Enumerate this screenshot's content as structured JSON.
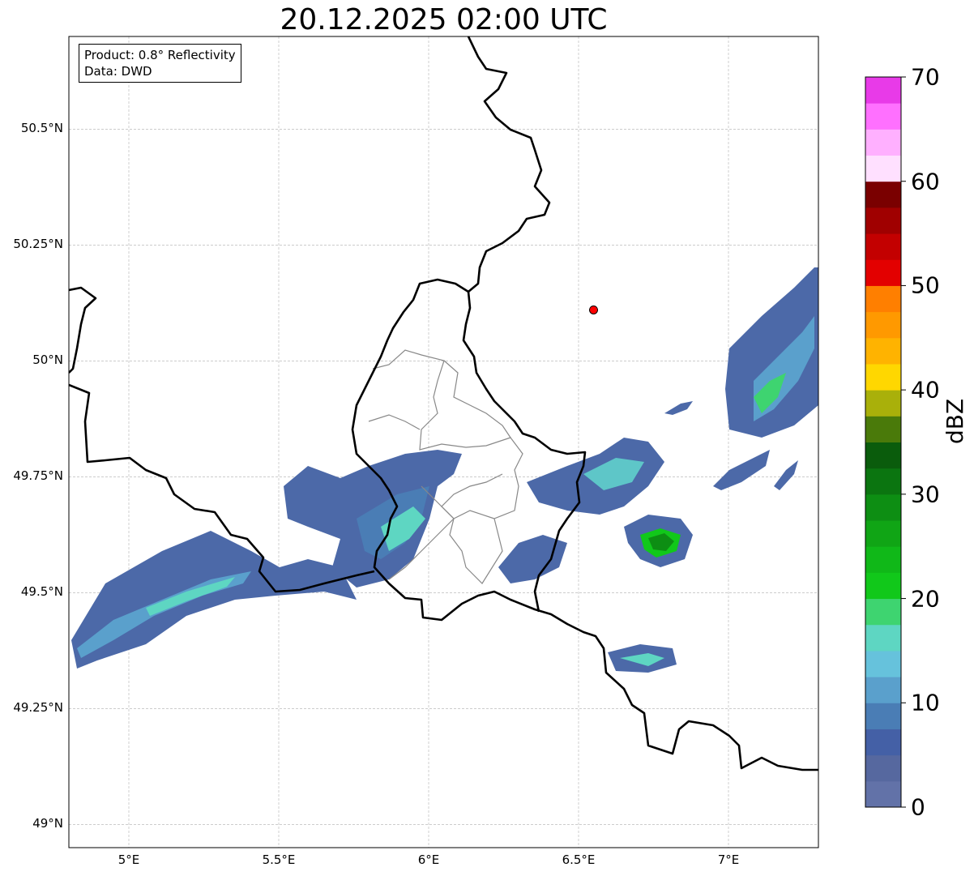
{
  "title": "20.12.2025 02:00 UTC",
  "info": {
    "product": "Product: 0.8° Reflectivity",
    "source": "Data: DWD"
  },
  "map": {
    "lon_range": [
      4.8,
      7.3
    ],
    "lat_range": [
      48.95,
      50.7
    ],
    "lon_ticks": [
      "5°E",
      "5.5°E",
      "6°E",
      "6.5°E",
      "7°E"
    ],
    "lat_ticks": [
      "50.5°N",
      "50.25°N",
      "50°N",
      "49.75°N",
      "49.5°N",
      "49.25°N",
      "49°N"
    ],
    "radar_site": {
      "lon": 6.55,
      "lat": 50.11,
      "color": "#ff0000"
    },
    "gridlines": true
  },
  "colorbar": {
    "label": "dBZ",
    "min": 0,
    "max": 70,
    "tick_labels": [
      "0",
      "10",
      "20",
      "30",
      "40",
      "50",
      "60",
      "70"
    ],
    "colors": [
      "#6272a8",
      "#56689f",
      "#4460a6",
      "#4a7db5",
      "#5aa0cc",
      "#66c2dc",
      "#5ed6c2",
      "#3ed470",
      "#11c81a",
      "#10b818",
      "#10a515",
      "#0d8e13",
      "#0b7510",
      "#0a5c0c",
      "#4a7a0a",
      "#a9b00a",
      "#ffd700",
      "#ffb300",
      "#ff9900",
      "#ff7f00",
      "#e30000",
      "#c30000",
      "#a00000",
      "#7a0000",
      "#ffe0ff",
      "#ffb0ff",
      "#ff70ff",
      "#e83ae8"
    ]
  }
}
